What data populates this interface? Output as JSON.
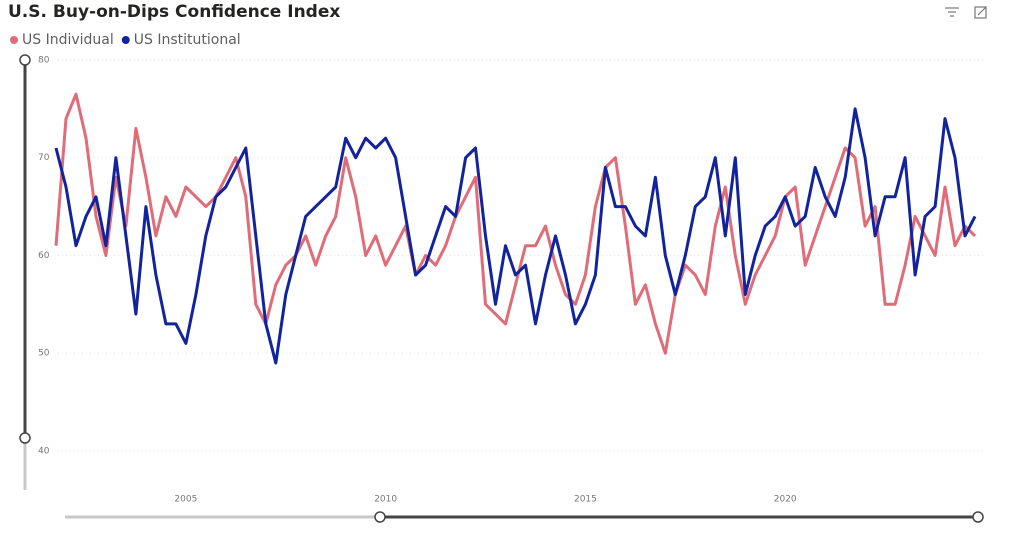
{
  "chart_data": {
    "type": "line",
    "title": "U.S. Buy-on-Dips Confidence Index",
    "x": [
      2001.75,
      2002.0,
      2002.25,
      2002.5,
      2002.75,
      2003.0,
      2003.25,
      2003.5,
      2003.75,
      2004.0,
      2004.25,
      2004.5,
      2004.75,
      2005.0,
      2005.25,
      2005.5,
      2005.75,
      2006.0,
      2006.25,
      2006.5,
      2006.75,
      2007.0,
      2007.25,
      2007.5,
      2007.75,
      2008.0,
      2008.25,
      2008.5,
      2008.75,
      2009.0,
      2009.25,
      2009.5,
      2009.75,
      2010.0,
      2010.25,
      2010.5,
      2010.75,
      2011.0,
      2011.25,
      2011.5,
      2011.75,
      2012.0,
      2012.25,
      2012.5,
      2012.75,
      2013.0,
      2013.25,
      2013.5,
      2013.75,
      2014.0,
      2014.25,
      2014.5,
      2014.75,
      2015.0,
      2015.25,
      2015.5,
      2015.75,
      2016.0,
      2016.25,
      2016.5,
      2016.75,
      2017.0,
      2017.25,
      2017.5,
      2017.75,
      2018.0,
      2018.25,
      2018.5,
      2018.75,
      2019.0,
      2019.25,
      2019.5,
      2019.75,
      2020.0,
      2020.25,
      2020.5,
      2020.75,
      2021.0,
      2021.25,
      2021.5,
      2021.75,
      2022.0,
      2022.25,
      2022.5,
      2022.75,
      2023.0,
      2023.25,
      2023.5,
      2023.75,
      2024.0,
      2024.25,
      2024.5,
      2024.75
    ],
    "series": [
      {
        "name": "US Individual",
        "color": "#e06c78",
        "values": [
          61,
          74,
          76.5,
          72,
          64,
          60,
          68,
          63,
          73,
          68,
          62,
          66,
          64,
          67,
          66,
          65,
          66,
          68,
          70,
          66,
          55,
          53,
          57,
          59,
          60,
          62,
          59,
          62,
          64,
          70,
          66,
          60,
          62,
          59,
          61,
          63,
          58,
          60,
          59,
          61,
          64,
          66,
          68,
          55,
          54,
          53,
          57,
          61,
          61,
          63,
          59,
          56,
          55,
          58,
          65,
          69,
          70,
          63,
          55,
          57,
          53,
          50,
          56,
          59,
          58,
          56,
          63,
          67,
          60,
          55,
          58,
          60,
          62,
          66,
          67,
          59,
          62,
          65,
          68,
          71,
          70,
          63,
          65,
          55,
          55,
          59,
          64,
          62,
          60,
          67,
          61,
          63,
          62
        ]
      },
      {
        "name": "US Institutional",
        "color": "#12239e",
        "values": [
          71,
          67,
          61,
          64,
          66,
          61,
          70,
          62,
          54,
          65,
          58,
          53,
          53,
          51,
          56,
          62,
          66,
          67,
          69,
          71,
          62,
          53,
          49,
          56,
          60,
          64,
          65,
          66,
          67,
          72,
          70,
          72,
          71,
          72,
          70,
          64,
          58,
          59,
          62,
          65,
          64,
          70,
          71,
          62,
          55,
          61,
          58,
          59,
          53,
          58,
          62,
          58,
          53,
          55,
          58,
          69,
          65,
          65,
          63,
          62,
          68,
          60,
          56,
          60,
          65,
          66,
          70,
          62,
          70,
          56,
          60,
          63,
          64,
          66,
          63,
          64,
          69,
          66,
          64,
          68,
          75,
          70,
          62,
          66,
          66,
          70,
          58,
          64,
          65,
          74,
          70,
          62,
          64
        ]
      }
    ],
    "xlim": [
      2001.8,
      2025.0
    ],
    "xticks": [
      2005,
      2010,
      2015,
      2020
    ],
    "ylim": [
      36,
      80
    ],
    "yticks": [
      40,
      50,
      60,
      70,
      80
    ],
    "grid": true,
    "legend": "top-left"
  }
}
